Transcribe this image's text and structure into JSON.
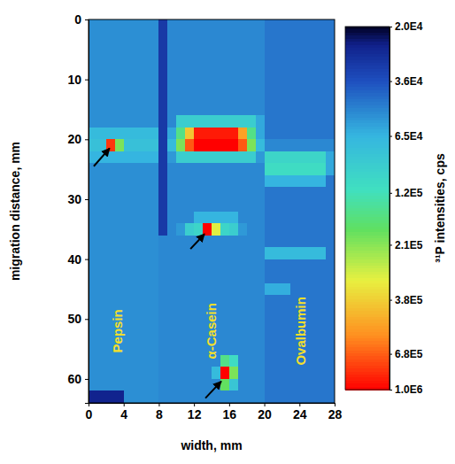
{
  "chart_data": {
    "type": "heatmap",
    "xlabel": "width, mm",
    "ylabel": "migration distance, mm",
    "xlim": [
      0,
      28
    ],
    "ylim": [
      0,
      64
    ],
    "xticks": [
      0,
      4,
      8,
      12,
      16,
      20,
      24,
      28
    ],
    "yticks": [
      0,
      10,
      20,
      30,
      40,
      50,
      60
    ],
    "x_bins": [
      0,
      1,
      2,
      3,
      4,
      5,
      6,
      7,
      8,
      9,
      10,
      11,
      12,
      13,
      14,
      15,
      16,
      17,
      18,
      19,
      20,
      21,
      22,
      23,
      24,
      25,
      26,
      27,
      28
    ],
    "y_bins": [
      0,
      2,
      4,
      6,
      8,
      10,
      12,
      14,
      16,
      18,
      20,
      22,
      24,
      26,
      28,
      30,
      32,
      34,
      36,
      38,
      40,
      42,
      44,
      46,
      48,
      50,
      52,
      54,
      56,
      58,
      60,
      62,
      64
    ],
    "values": [
      [
        52000,
        52000,
        52000,
        52000,
        52000,
        52000,
        52000,
        52000,
        30000,
        50000,
        50000,
        50000,
        50000,
        50000,
        50000,
        50000,
        50000,
        50000,
        50000,
        50000,
        45000,
        45000,
        45000,
        45000,
        45000,
        45000,
        45000,
        45000
      ],
      [
        52000,
        52000,
        52000,
        52000,
        52000,
        52000,
        52000,
        52000,
        30000,
        50000,
        50000,
        50000,
        50000,
        50000,
        50000,
        50000,
        50000,
        50000,
        50000,
        50000,
        45000,
        45000,
        45000,
        45000,
        45000,
        45000,
        45000,
        45000
      ],
      [
        52000,
        52000,
        52000,
        52000,
        52000,
        52000,
        52000,
        52000,
        30000,
        50000,
        50000,
        50000,
        50000,
        50000,
        50000,
        50000,
        50000,
        50000,
        50000,
        50000,
        45000,
        45000,
        45000,
        45000,
        45000,
        45000,
        45000,
        45000
      ],
      [
        52000,
        52000,
        52000,
        52000,
        52000,
        52000,
        52000,
        52000,
        30000,
        50000,
        50000,
        50000,
        50000,
        50000,
        50000,
        50000,
        50000,
        50000,
        50000,
        50000,
        45000,
        45000,
        45000,
        45000,
        45000,
        45000,
        45000,
        45000
      ],
      [
        52000,
        52000,
        52000,
        52000,
        52000,
        52000,
        52000,
        52000,
        30000,
        50000,
        50000,
        50000,
        50000,
        50000,
        50000,
        50000,
        50000,
        50000,
        50000,
        50000,
        45000,
        45000,
        45000,
        45000,
        45000,
        45000,
        45000,
        45000
      ],
      [
        52000,
        52000,
        52000,
        52000,
        52000,
        52000,
        52000,
        52000,
        30000,
        50000,
        50000,
        50000,
        50000,
        50000,
        50000,
        50000,
        50000,
        50000,
        50000,
        50000,
        45000,
        45000,
        45000,
        45000,
        45000,
        45000,
        45000,
        45000
      ],
      [
        52000,
        52000,
        52000,
        52000,
        52000,
        52000,
        52000,
        52000,
        30000,
        50000,
        50000,
        50000,
        50000,
        50000,
        50000,
        50000,
        50000,
        50000,
        50000,
        50000,
        45000,
        45000,
        45000,
        45000,
        45000,
        45000,
        45000,
        45000
      ],
      [
        52000,
        52000,
        52000,
        52000,
        52000,
        52000,
        52000,
        52000,
        30000,
        50000,
        50000,
        50000,
        50000,
        50000,
        50000,
        50000,
        50000,
        50000,
        50000,
        50000,
        45000,
        45000,
        45000,
        45000,
        45000,
        45000,
        45000,
        45000
      ],
      [
        52000,
        52000,
        52000,
        52000,
        52000,
        52000,
        52000,
        52000,
        30000,
        50000,
        90000,
        90000,
        90000,
        90000,
        90000,
        90000,
        90000,
        90000,
        90000,
        60000,
        45000,
        45000,
        45000,
        45000,
        45000,
        45000,
        45000,
        45000
      ],
      [
        70000,
        70000,
        70000,
        70000,
        70000,
        70000,
        70000,
        70000,
        30000,
        60000,
        150000,
        400000,
        900000,
        900000,
        900000,
        900000,
        900000,
        500000,
        150000,
        60000,
        45000,
        45000,
        45000,
        45000,
        45000,
        45000,
        45000,
        45000
      ],
      [
        75000,
        75000,
        800000,
        200000,
        75000,
        75000,
        75000,
        75000,
        30000,
        70000,
        200000,
        700000,
        1000000,
        1000000,
        1000000,
        1000000,
        1000000,
        700000,
        200000,
        70000,
        50000,
        50000,
        50000,
        50000,
        50000,
        50000,
        50000,
        50000
      ],
      [
        65000,
        65000,
        65000,
        65000,
        65000,
        65000,
        65000,
        65000,
        30000,
        55000,
        90000,
        90000,
        90000,
        90000,
        90000,
        90000,
        90000,
        90000,
        90000,
        55000,
        100000,
        100000,
        100000,
        100000,
        100000,
        100000,
        100000,
        60000
      ],
      [
        52000,
        52000,
        52000,
        52000,
        52000,
        52000,
        52000,
        52000,
        30000,
        50000,
        50000,
        50000,
        50000,
        50000,
        50000,
        50000,
        50000,
        50000,
        50000,
        50000,
        110000,
        110000,
        110000,
        110000,
        110000,
        110000,
        110000,
        60000
      ],
      [
        52000,
        52000,
        52000,
        52000,
        52000,
        52000,
        52000,
        52000,
        30000,
        50000,
        50000,
        50000,
        50000,
        50000,
        50000,
        50000,
        50000,
        50000,
        50000,
        50000,
        65000,
        65000,
        65000,
        65000,
        65000,
        65000,
        65000,
        45000
      ],
      [
        52000,
        52000,
        52000,
        52000,
        52000,
        52000,
        52000,
        52000,
        30000,
        50000,
        50000,
        50000,
        50000,
        50000,
        50000,
        50000,
        50000,
        50000,
        50000,
        50000,
        45000,
        45000,
        45000,
        45000,
        45000,
        45000,
        45000,
        45000
      ],
      [
        52000,
        52000,
        52000,
        52000,
        52000,
        52000,
        52000,
        52000,
        30000,
        50000,
        50000,
        50000,
        50000,
        50000,
        50000,
        50000,
        50000,
        50000,
        50000,
        50000,
        45000,
        45000,
        45000,
        45000,
        45000,
        45000,
        45000,
        45000
      ],
      [
        52000,
        52000,
        52000,
        52000,
        52000,
        52000,
        52000,
        52000,
        30000,
        50000,
        50000,
        50000,
        65000,
        65000,
        65000,
        65000,
        65000,
        50000,
        50000,
        50000,
        45000,
        45000,
        45000,
        45000,
        45000,
        45000,
        45000,
        45000
      ],
      [
        52000,
        52000,
        52000,
        52000,
        52000,
        52000,
        52000,
        52000,
        30000,
        50000,
        55000,
        90000,
        100000,
        1000000,
        300000,
        100000,
        90000,
        55000,
        50000,
        50000,
        45000,
        45000,
        45000,
        45000,
        45000,
        45000,
        45000,
        45000
      ],
      [
        52000,
        52000,
        52000,
        52000,
        52000,
        52000,
        52000,
        52000,
        50000,
        50000,
        50000,
        50000,
        50000,
        50000,
        50000,
        50000,
        50000,
        50000,
        50000,
        50000,
        45000,
        45000,
        45000,
        45000,
        45000,
        45000,
        45000,
        45000
      ],
      [
        52000,
        52000,
        52000,
        52000,
        52000,
        52000,
        52000,
        52000,
        50000,
        50000,
        50000,
        50000,
        50000,
        50000,
        50000,
        50000,
        50000,
        50000,
        50000,
        50000,
        70000,
        70000,
        70000,
        70000,
        70000,
        70000,
        70000,
        45000
      ],
      [
        52000,
        52000,
        52000,
        52000,
        52000,
        52000,
        52000,
        52000,
        50000,
        50000,
        50000,
        50000,
        50000,
        50000,
        50000,
        50000,
        50000,
        50000,
        50000,
        50000,
        45000,
        45000,
        45000,
        45000,
        45000,
        45000,
        45000,
        45000
      ],
      [
        52000,
        52000,
        52000,
        52000,
        52000,
        52000,
        52000,
        52000,
        50000,
        50000,
        50000,
        50000,
        50000,
        50000,
        50000,
        50000,
        50000,
        50000,
        50000,
        50000,
        45000,
        45000,
        45000,
        45000,
        45000,
        45000,
        45000,
        45000
      ],
      [
        52000,
        52000,
        52000,
        52000,
        52000,
        52000,
        52000,
        52000,
        50000,
        50000,
        50000,
        50000,
        50000,
        50000,
        50000,
        50000,
        50000,
        50000,
        50000,
        50000,
        62000,
        62000,
        62000,
        45000,
        45000,
        45000,
        45000,
        45000
      ],
      [
        52000,
        52000,
        52000,
        52000,
        52000,
        52000,
        52000,
        52000,
        50000,
        50000,
        50000,
        50000,
        50000,
        50000,
        50000,
        50000,
        50000,
        50000,
        50000,
        50000,
        45000,
        45000,
        45000,
        45000,
        45000,
        45000,
        45000,
        45000
      ],
      [
        52000,
        52000,
        52000,
        52000,
        52000,
        52000,
        52000,
        52000,
        50000,
        50000,
        50000,
        50000,
        50000,
        50000,
        50000,
        50000,
        50000,
        50000,
        50000,
        50000,
        45000,
        45000,
        45000,
        45000,
        45000,
        45000,
        45000,
        45000
      ],
      [
        52000,
        52000,
        52000,
        52000,
        52000,
        52000,
        52000,
        52000,
        50000,
        50000,
        50000,
        50000,
        50000,
        50000,
        50000,
        50000,
        50000,
        50000,
        50000,
        50000,
        45000,
        45000,
        45000,
        45000,
        45000,
        45000,
        45000,
        45000
      ],
      [
        52000,
        52000,
        52000,
        52000,
        52000,
        52000,
        52000,
        52000,
        50000,
        50000,
        50000,
        50000,
        50000,
        50000,
        50000,
        50000,
        50000,
        50000,
        50000,
        50000,
        45000,
        45000,
        45000,
        45000,
        45000,
        45000,
        45000,
        45000
      ],
      [
        52000,
        52000,
        52000,
        52000,
        52000,
        52000,
        52000,
        52000,
        50000,
        50000,
        50000,
        50000,
        50000,
        50000,
        50000,
        50000,
        50000,
        50000,
        50000,
        50000,
        45000,
        45000,
        45000,
        45000,
        45000,
        45000,
        45000,
        45000
      ],
      [
        52000,
        52000,
        52000,
        52000,
        52000,
        52000,
        52000,
        52000,
        50000,
        50000,
        50000,
        50000,
        50000,
        50000,
        50000,
        150000,
        110000,
        50000,
        50000,
        50000,
        45000,
        45000,
        45000,
        45000,
        45000,
        45000,
        45000,
        45000
      ],
      [
        52000,
        52000,
        52000,
        52000,
        52000,
        52000,
        52000,
        52000,
        50000,
        50000,
        50000,
        50000,
        50000,
        50000,
        70000,
        1000000,
        200000,
        50000,
        50000,
        50000,
        45000,
        45000,
        45000,
        45000,
        45000,
        45000,
        45000,
        45000
      ],
      [
        52000,
        52000,
        52000,
        52000,
        52000,
        52000,
        52000,
        52000,
        50000,
        50000,
        50000,
        50000,
        50000,
        50000,
        50000,
        180000,
        80000,
        50000,
        50000,
        50000,
        45000,
        45000,
        45000,
        45000,
        45000,
        45000,
        45000,
        45000
      ],
      [
        25000,
        25000,
        25000,
        25000,
        52000,
        52000,
        52000,
        52000,
        50000,
        50000,
        50000,
        50000,
        50000,
        50000,
        50000,
        50000,
        50000,
        50000,
        50000,
        50000,
        45000,
        45000,
        45000,
        45000,
        45000,
        45000,
        45000,
        45000
      ]
    ],
    "colorbar": {
      "label": "³¹P intensities, cps",
      "log": true,
      "range": [
        20000,
        1000000
      ],
      "ticks": [
        {
          "value": 20000,
          "label": "2.0E4"
        },
        {
          "value": 36000,
          "label": "3.6E4"
        },
        {
          "value": 65000,
          "label": "6.5E4"
        },
        {
          "value": 120000,
          "label": "1.2E5"
        },
        {
          "value": 210000,
          "label": "2.1E5"
        },
        {
          "value": 380000,
          "label": "3.8E5"
        },
        {
          "value": 680000,
          "label": "6.8E5"
        },
        {
          "value": 1000000,
          "label": "1.0E6"
        }
      ]
    },
    "annotations": [
      "Pepsin",
      "α-Casein",
      "Ovalbumin"
    ]
  }
}
